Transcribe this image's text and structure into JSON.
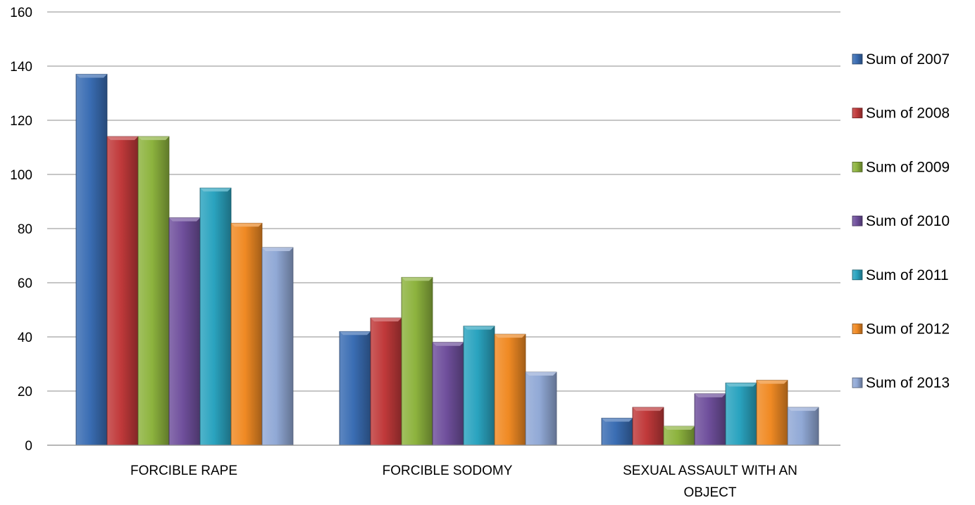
{
  "chart_data": {
    "type": "bar",
    "title": "",
    "xlabel": "",
    "ylabel": "",
    "ylim": [
      0,
      160
    ],
    "yticks": [
      "0",
      "20",
      "40",
      "60",
      "80",
      "100",
      "120",
      "140",
      "160"
    ],
    "grid": true,
    "legend_position": "right",
    "categories": [
      "FORCIBLE RAPE",
      "FORCIBLE SODOMY",
      "SEXUAL ASSAULT WITH AN OBJECT"
    ],
    "series": [
      {
        "name": "Sum of 2007",
        "color": "#3a6db3",
        "values": [
          137,
          42,
          10
        ]
      },
      {
        "name": "Sum of 2008",
        "color": "#c0393a",
        "values": [
          114,
          47,
          14
        ]
      },
      {
        "name": "Sum of 2009",
        "color": "#8db33e",
        "values": [
          114,
          62,
          7
        ]
      },
      {
        "name": "Sum of 2010",
        "color": "#6f4f9c",
        "values": [
          84,
          38,
          19
        ]
      },
      {
        "name": "Sum of 2011",
        "color": "#2aa3bf",
        "values": [
          95,
          44,
          23
        ]
      },
      {
        "name": "Sum of 2012",
        "color": "#f08a24",
        "values": [
          82,
          41,
          24
        ]
      },
      {
        "name": "Sum of 2013",
        "color": "#91a9d6",
        "values": [
          73,
          27,
          14
        ]
      }
    ]
  }
}
